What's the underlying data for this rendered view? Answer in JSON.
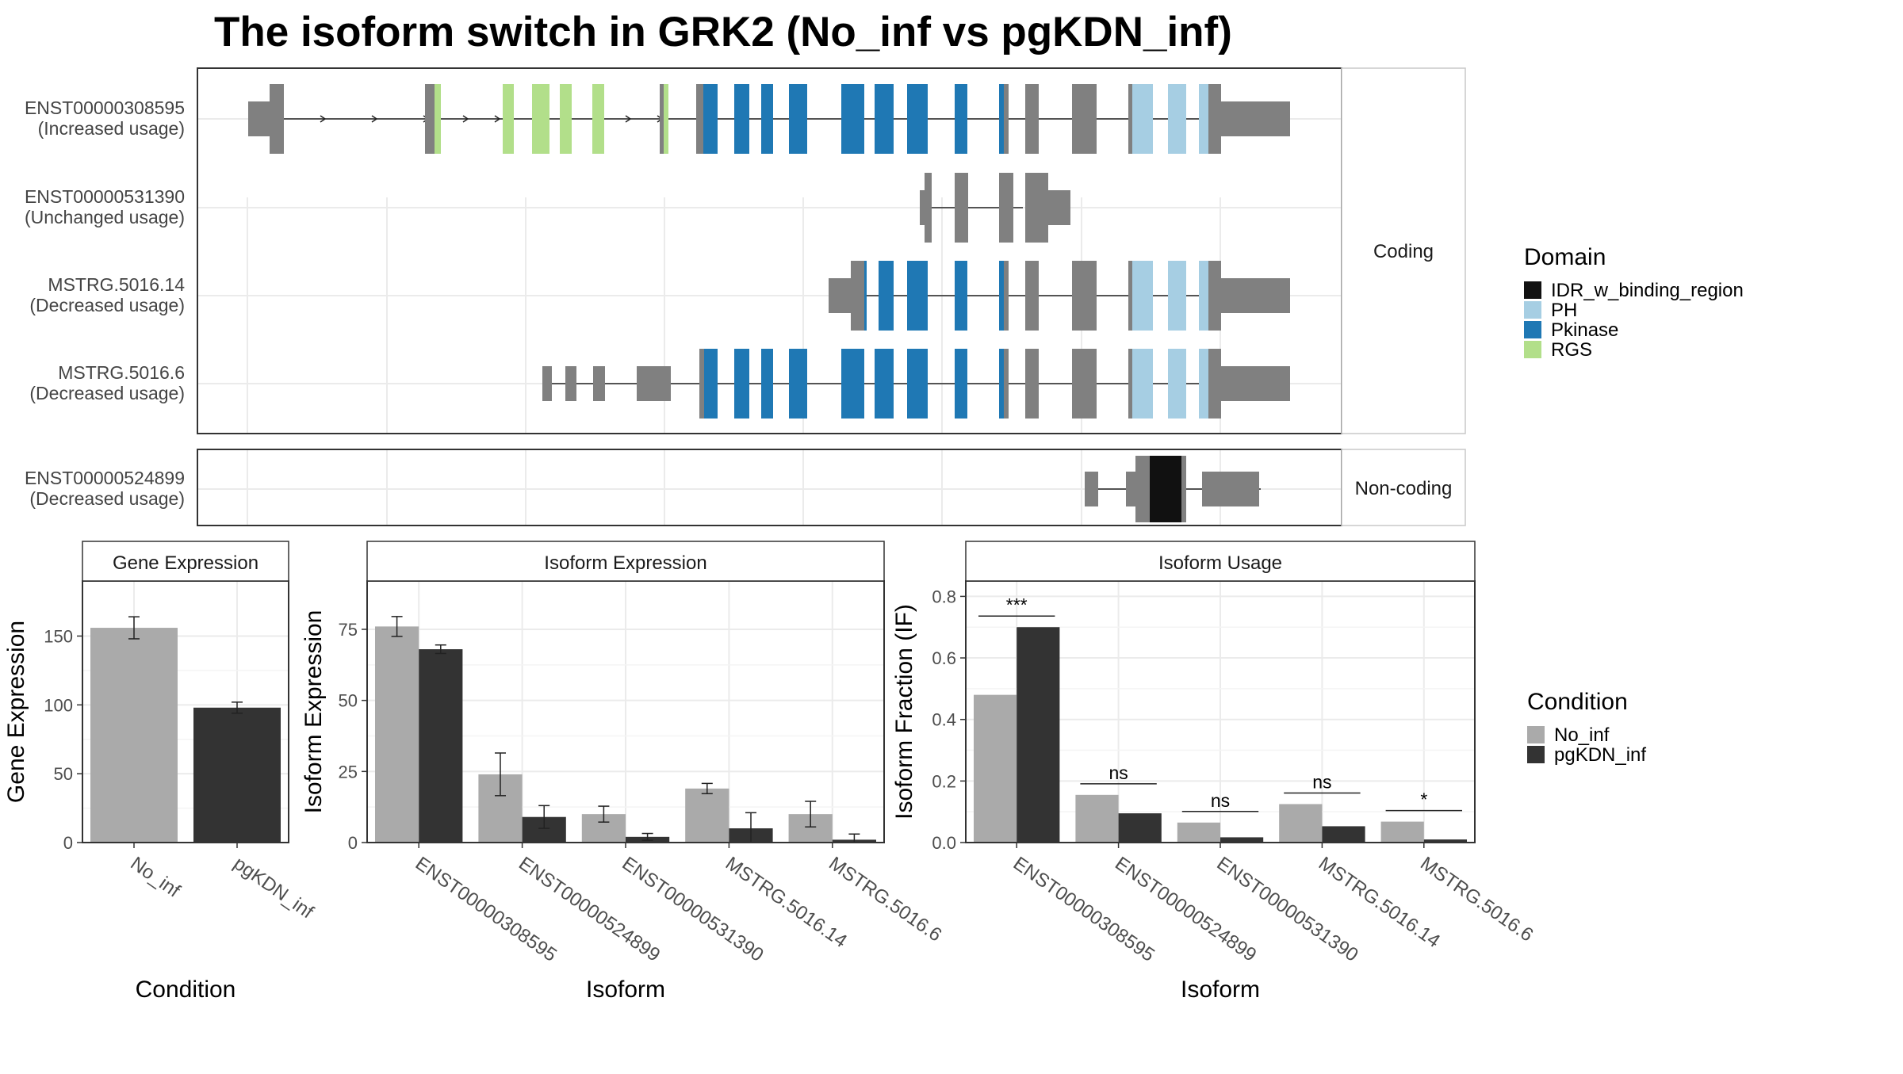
{
  "title": "The isoform switch in GRK2 (No_inf vs pgKDN_inf)",
  "colors": {
    "exon": "#808080",
    "IDR_w_binding_region": "#111111",
    "PH": "#a6cee3",
    "Pkinase": "#1f78b4",
    "RGS": "#b2df8a",
    "No_inf": "#aaaaaa",
    "pgKDN_inf": "#333333"
  },
  "structure": {
    "coding_label": "Coding",
    "noncoding_label": "Non-coding",
    "transcripts": [
      {
        "id": "ENST00000308595",
        "usage": "(Increased usage)"
      },
      {
        "id": "ENST00000531390",
        "usage": "(Unchanged usage)"
      },
      {
        "id": "MSTRG.5016.14",
        "usage": "(Decreased usage)"
      },
      {
        "id": "MSTRG.5016.6",
        "usage": "(Decreased usage)"
      },
      {
        "id": "ENST00000524899",
        "usage": "(Decreased usage)"
      }
    ],
    "domain_legend_title": "Domain",
    "domains": [
      "IDR_w_binding_region",
      "PH",
      "Pkinase",
      "RGS"
    ]
  },
  "chart_data": [
    {
      "type": "bar",
      "title": "Gene Expression",
      "xlabel": "Condition",
      "ylabel": "Gene Expression",
      "ylim": [
        0,
        190
      ],
      "yticks": [
        0,
        50,
        100,
        150
      ],
      "categories": [
        "No_inf",
        "pgKDN_inf"
      ],
      "values": [
        156,
        98
      ],
      "errors": [
        8,
        4
      ]
    },
    {
      "type": "bar",
      "title": "Isoform Expression",
      "xlabel": "Isoform",
      "ylabel": "Isoform Expression",
      "ylim": [
        0,
        92
      ],
      "yticks": [
        0,
        25,
        50,
        75
      ],
      "categories": [
        "ENST00000308595",
        "ENST00000524899",
        "ENST00000531390",
        "MSTRG.5016.14",
        "MSTRG.5016.6"
      ],
      "series": [
        {
          "name": "No_inf",
          "values": [
            76,
            24,
            10,
            19,
            10
          ],
          "errors": [
            3.5,
            7.5,
            2.8,
            1.8,
            4.5
          ]
        },
        {
          "name": "pgKDN_inf",
          "values": [
            68,
            9,
            2,
            5,
            1
          ],
          "errors": [
            1.5,
            4,
            1.2,
            5.5,
            2
          ]
        }
      ]
    },
    {
      "type": "bar",
      "title": "Isoform Usage",
      "xlabel": "Isoform",
      "ylabel": "Isoform Fraction (IF)",
      "ylim": [
        0,
        0.85
      ],
      "yticks": [
        0.0,
        0.2,
        0.4,
        0.6,
        0.8
      ],
      "categories": [
        "ENST00000308595",
        "ENST00000524899",
        "ENST00000531390",
        "MSTRG.5016.14",
        "MSTRG.5016.6"
      ],
      "series": [
        {
          "name": "No_inf",
          "values": [
            0.48,
            0.155,
            0.065,
            0.125,
            0.068
          ]
        },
        {
          "name": "pgKDN_inf",
          "values": [
            0.7,
            0.095,
            0.017,
            0.053,
            0.01
          ]
        }
      ],
      "significance": [
        "***",
        "ns",
        "ns",
        "ns",
        "*"
      ],
      "legend_title": "Condition"
    }
  ]
}
